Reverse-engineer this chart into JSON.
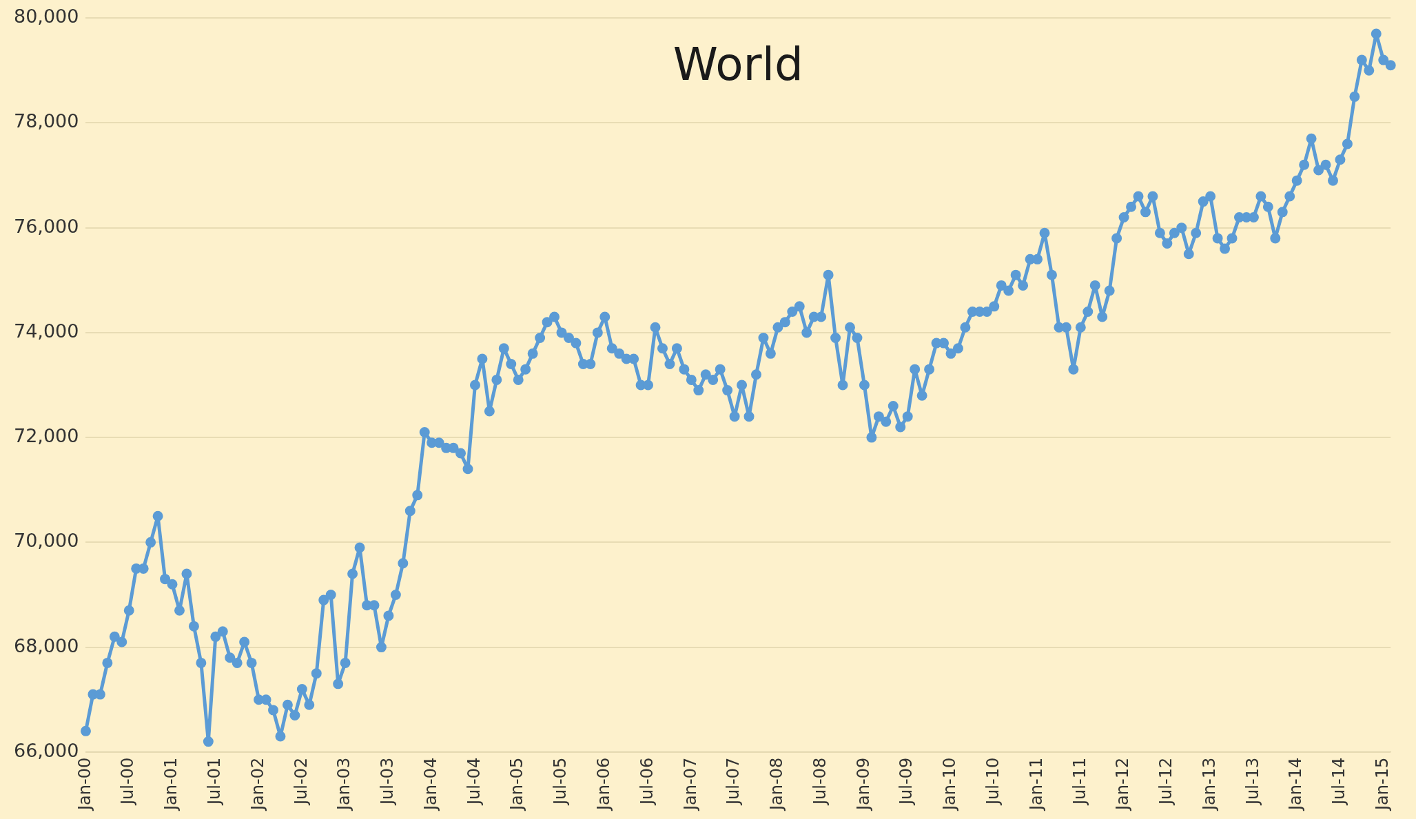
{
  "chart_data": {
    "type": "line",
    "title": "World",
    "categories": [
      "Jan-00",
      null,
      null,
      null,
      null,
      null,
      "Jul-00",
      null,
      null,
      null,
      null,
      null,
      "Jan-01",
      null,
      null,
      null,
      null,
      null,
      "Jul-01",
      null,
      null,
      null,
      null,
      null,
      "Jan-02",
      null,
      null,
      null,
      null,
      null,
      "Jul-02",
      null,
      null,
      null,
      null,
      null,
      "Jan-03",
      null,
      null,
      null,
      null,
      null,
      "Jul-03",
      null,
      null,
      null,
      null,
      null,
      "Jan-04",
      null,
      null,
      null,
      null,
      null,
      "Jul-04",
      null,
      null,
      null,
      null,
      null,
      "Jan-05",
      null,
      null,
      null,
      null,
      null,
      "Jul-05",
      null,
      null,
      null,
      null,
      null,
      "Jan-06",
      null,
      null,
      null,
      null,
      null,
      "Jul-06",
      null,
      null,
      null,
      null,
      null,
      "Jan-07",
      null,
      null,
      null,
      null,
      null,
      "Jul-07",
      null,
      null,
      null,
      null,
      null,
      "Jan-08",
      null,
      null,
      null,
      null,
      null,
      "Jul-08",
      null,
      null,
      null,
      null,
      null,
      "Jan-09",
      null,
      null,
      null,
      null,
      null,
      "Jul-09",
      null,
      null,
      null,
      null,
      null,
      "Jan-10",
      null,
      null,
      null,
      null,
      null,
      "Jul-10",
      null,
      null,
      null,
      null,
      null,
      "Jan-11",
      null,
      null,
      null,
      null,
      null,
      "Jul-11",
      null,
      null,
      null,
      null,
      null,
      "Jan-12",
      null,
      null,
      null,
      null,
      null,
      "Jul-12",
      null,
      null,
      null,
      null,
      null,
      "Jan-13",
      null,
      null,
      null,
      null,
      null,
      "Jul-13",
      null,
      null,
      null,
      null,
      null,
      "Jan-14",
      null,
      null,
      null,
      null,
      null,
      "Jul-14",
      null,
      null,
      null,
      null,
      null,
      "Jan-15",
      null
    ],
    "series": [
      {
        "color": "#5b9bd5",
        "values": [
          66400,
          67100,
          67100,
          67700,
          68200,
          68100,
          68700,
          69500,
          69500,
          70000,
          70500,
          69300,
          69200,
          68700,
          69400,
          68400,
          67700,
          66200,
          68200,
          68300,
          67800,
          67700,
          68100,
          67700,
          67000,
          67000,
          66800,
          66300,
          66900,
          66700,
          67200,
          66900,
          67500,
          68900,
          69000,
          67300,
          67700,
          69400,
          69900,
          68800,
          68800,
          68000,
          68600,
          69000,
          69600,
          70600,
          70900,
          72100,
          71900,
          71900,
          71800,
          71800,
          71700,
          71400,
          73000,
          73500,
          72500,
          73100,
          73700,
          73400,
          73100,
          73300,
          73600,
          73900,
          74200,
          74300,
          74000,
          73900,
          73800,
          73400,
          73400,
          74000,
          74300,
          73700,
          73600,
          73500,
          73500,
          73000,
          73000,
          74100,
          73700,
          73400,
          73700,
          73300,
          73100,
          72900,
          73200,
          73100,
          73300,
          72900,
          72400,
          73000,
          72400,
          73200,
          73900,
          73600,
          74100,
          74200,
          74400,
          74500,
          74000,
          74300,
          74300,
          75100,
          73900,
          73000,
          74100,
          73900,
          73000,
          72000,
          72400,
          72300,
          72600,
          72200,
          72400,
          73300,
          72800,
          73300,
          73800,
          73800,
          73600,
          73700,
          74100,
          74400,
          74400,
          74400,
          74500,
          74900,
          74800,
          75100,
          74900,
          75400,
          75400,
          75900,
          75100,
          74100,
          74100,
          73300,
          74100,
          74400,
          74900,
          74300,
          74800,
          75800,
          76200,
          76400,
          76600,
          76300,
          76600,
          75900,
          75700,
          75900,
          76000,
          75500,
          75900,
          76500,
          76600,
          75800,
          75600,
          75800,
          76200,
          76200,
          76200,
          76600,
          76400,
          75800,
          76300,
          76600,
          76900,
          77200,
          77700,
          77100,
          77200,
          76900,
          77300,
          77600,
          78500,
          79200,
          79000,
          79700,
          79200,
          79100
        ]
      }
    ],
    "ylim": [
      66000,
      80000
    ],
    "yticks": [
      {
        "value": 66000,
        "label": "66,000"
      },
      {
        "value": 68000,
        "label": "68,000"
      },
      {
        "value": 70000,
        "label": "70,000"
      },
      {
        "value": 72000,
        "label": "72,000"
      },
      {
        "value": 74000,
        "label": "74,000"
      },
      {
        "value": 76000,
        "label": "76,000"
      },
      {
        "value": 78000,
        "label": "78,000"
      },
      {
        "value": 80000,
        "label": "80,000"
      }
    ],
    "grid": "y",
    "marker": "circle",
    "line_style": "solid"
  }
}
